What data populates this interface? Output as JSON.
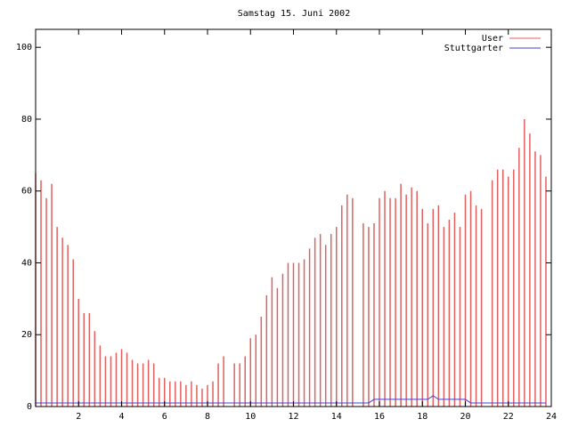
{
  "chart_data": {
    "type": "impulse-line",
    "title": "Samstag 15. Juni 2002",
    "x": [
      0,
      0.25,
      0.5,
      0.75,
      1,
      1.25,
      1.5,
      1.75,
      2,
      2.25,
      2.5,
      2.75,
      3,
      3.25,
      3.5,
      3.75,
      4,
      4.25,
      4.5,
      4.75,
      5,
      5.25,
      5.5,
      5.75,
      6,
      6.25,
      6.5,
      6.75,
      7,
      7.25,
      7.5,
      7.75,
      8,
      8.25,
      8.5,
      8.75,
      9,
      9.25,
      9.5,
      9.75,
      10,
      10.25,
      10.5,
      10.75,
      11,
      11.25,
      11.5,
      11.75,
      12,
      12.25,
      12.5,
      12.75,
      13,
      13.25,
      13.5,
      13.75,
      14,
      14.25,
      14.5,
      14.75,
      15,
      15.25,
      15.5,
      15.75,
      16,
      16.25,
      16.5,
      16.75,
      17,
      17.25,
      17.5,
      17.75,
      18,
      18.25,
      18.5,
      18.75,
      19,
      19.25,
      19.5,
      19.75,
      20,
      20.25,
      20.5,
      20.75,
      21,
      21.25,
      21.5,
      21.75,
      22,
      22.25,
      22.5,
      22.75,
      23,
      23.25,
      23.5,
      23.75
    ],
    "series": [
      {
        "name": "User",
        "color": "#e06060",
        "style": "impulses",
        "values": [
          65,
          63,
          58,
          62,
          50,
          47,
          45,
          41,
          30,
          26,
          26,
          21,
          17,
          14,
          14,
          15,
          16,
          15,
          13,
          12,
          12,
          13,
          12,
          8,
          8,
          7,
          7,
          7,
          6,
          7,
          6,
          5,
          6,
          7,
          12,
          14,
          null,
          12,
          12,
          14,
          19,
          20,
          25,
          31,
          36,
          33,
          37,
          40,
          40,
          40,
          41,
          44,
          47,
          48,
          45,
          48,
          50,
          56,
          59,
          58,
          null,
          51,
          50,
          51,
          58,
          60,
          58,
          58,
          62,
          59,
          61,
          60,
          55,
          51,
          55,
          56,
          50,
          52,
          54,
          50,
          59,
          60,
          56,
          55,
          null,
          63,
          66,
          66,
          64,
          66,
          72,
          80,
          76,
          71,
          70,
          64
        ]
      },
      {
        "name": "Stuttgarter",
        "color": "#4040d0",
        "style": "line",
        "values": [
          1,
          1,
          1,
          1,
          1,
          1,
          1,
          1,
          1,
          1,
          1,
          1,
          1,
          1,
          1,
          1,
          1,
          1,
          1,
          1,
          1,
          1,
          1,
          1,
          1,
          1,
          1,
          1,
          1,
          1,
          1,
          1,
          1,
          1,
          1,
          1,
          1,
          1,
          1,
          1,
          1,
          1,
          1,
          1,
          1,
          1,
          1,
          1,
          1,
          1,
          1,
          1,
          1,
          1,
          1,
          1,
          1,
          1,
          1,
          1,
          1,
          1,
          1,
          2,
          2,
          2,
          2,
          2,
          2,
          2,
          2,
          2,
          2,
          2,
          3,
          2,
          2,
          2,
          2,
          2,
          2,
          1,
          1,
          1,
          1,
          1,
          1,
          1,
          1,
          1,
          1,
          1,
          1,
          1,
          1,
          1
        ]
      }
    ],
    "xlim": [
      0,
      24
    ],
    "xticks": [
      2,
      4,
      6,
      8,
      10,
      12,
      14,
      16,
      18,
      20,
      22,
      24
    ],
    "ylim": [
      0,
      105
    ],
    "yticks": [
      0,
      20,
      40,
      60,
      80,
      100
    ],
    "legend": "upper right"
  }
}
